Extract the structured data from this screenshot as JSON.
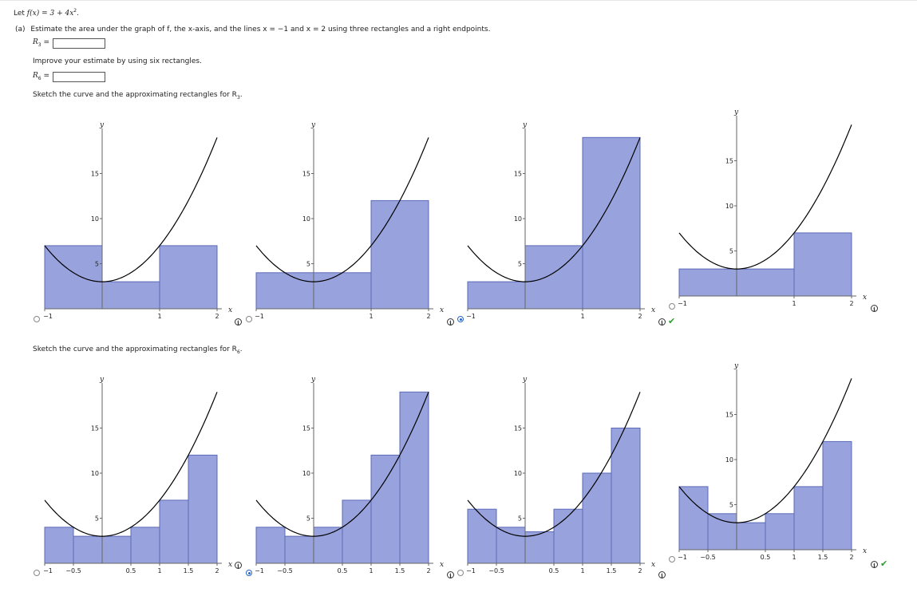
{
  "problem": {
    "statement_prefix": "Let ",
    "function_text": "f(x) = 3 + 4x",
    "function_exp": "2",
    "statement_suffix": ".",
    "part_a_label": "(a)",
    "part_a_text": "Estimate the area under the graph of f, the x-axis, and the lines x = −1 and x = 2 using three rectangles and a right endpoints.",
    "r3_label": "R",
    "r3_sub": "3",
    "r3_value": "",
    "improve_text": "Improve your estimate by using six rectangles.",
    "r6_label": "R",
    "r6_sub": "6",
    "r6_value": "",
    "sketch_r3_text": "Sketch the curve and the approximating rectangles for R",
    "sketch_r3_sub": "3",
    "sketch_r6_text": "Sketch the curve and the approximating rectangles for R",
    "sketch_r6_sub": "6"
  },
  "colors": {
    "rect_fill": "#98a2dc",
    "rect_stroke": "#5d6bb8",
    "curve": "#000000",
    "check": "#2aa02a",
    "radio": "#2266cc"
  },
  "icons": {
    "info": "info-icon",
    "check": "checkmark-icon"
  },
  "chart_data": [
    {
      "type": "bar",
      "group": "R3",
      "option": 1,
      "selected": false,
      "correct": false,
      "x_ticks": [
        "−1",
        "1",
        "2"
      ],
      "y_ticks": [
        "5",
        "10",
        "15"
      ],
      "xlabel": "x",
      "ylabel": "y",
      "xlim": [
        -1,
        2
      ],
      "ylim": [
        0,
        19
      ],
      "bars": [
        {
          "x0": -1,
          "x1": 0,
          "h": 7
        },
        {
          "x0": 0,
          "x1": 1,
          "h": 3
        },
        {
          "x0": 1,
          "x1": 2,
          "h": 7
        }
      ]
    },
    {
      "type": "bar",
      "group": "R3",
      "option": 2,
      "selected": false,
      "correct": false,
      "x_ticks": [
        "−1",
        "1",
        "2"
      ],
      "y_ticks": [
        "5",
        "10",
        "15"
      ],
      "xlabel": "x",
      "ylabel": "y",
      "xlim": [
        -1,
        2
      ],
      "ylim": [
        0,
        19
      ],
      "bars": [
        {
          "x0": -1,
          "x1": 1,
          "h": 4
        },
        {
          "x0": 1,
          "x1": 2,
          "h": 12
        }
      ]
    },
    {
      "type": "bar",
      "group": "R3",
      "option": 3,
      "selected": true,
      "correct": true,
      "x_ticks": [
        "−1",
        "1",
        "2"
      ],
      "y_ticks": [
        "5",
        "10",
        "15"
      ],
      "xlabel": "x",
      "ylabel": "y",
      "xlim": [
        -1,
        2
      ],
      "ylim": [
        0,
        19
      ],
      "bars": [
        {
          "x0": -1,
          "x1": 0,
          "h": 3
        },
        {
          "x0": 0,
          "x1": 1,
          "h": 7
        },
        {
          "x0": 1,
          "x1": 2,
          "h": 19
        }
      ]
    },
    {
      "type": "bar",
      "group": "R3",
      "option": 4,
      "selected": false,
      "correct": false,
      "x_ticks": [
        "−1",
        "1",
        "2"
      ],
      "y_ticks": [
        "5",
        "10",
        "15"
      ],
      "xlabel": "x",
      "ylabel": "y",
      "xlim": [
        -1,
        2
      ],
      "ylim": [
        0,
        19
      ],
      "bars": [
        {
          "x0": -1,
          "x1": 1,
          "h": 3
        },
        {
          "x0": 1,
          "x1": 2,
          "h": 7
        }
      ]
    },
    {
      "type": "bar",
      "group": "R6",
      "option": 1,
      "selected": false,
      "correct": false,
      "x_ticks": [
        "−1",
        "−0.5",
        "0.5",
        "1",
        "1.5",
        "2"
      ],
      "y_ticks": [
        "5",
        "10",
        "15"
      ],
      "xlabel": "x",
      "ylabel": "y",
      "xlim": [
        -1,
        2
      ],
      "ylim": [
        0,
        19
      ],
      "bars": [
        {
          "x0": -1,
          "x1": -0.5,
          "h": 4
        },
        {
          "x0": -0.5,
          "x1": 0,
          "h": 3
        },
        {
          "x0": 0,
          "x1": 0.5,
          "h": 3
        },
        {
          "x0": 0.5,
          "x1": 1,
          "h": 4
        },
        {
          "x0": 1,
          "x1": 1.5,
          "h": 7
        },
        {
          "x0": 1.5,
          "x1": 2,
          "h": 12
        }
      ]
    },
    {
      "type": "bar",
      "group": "R6",
      "option": 2,
      "selected": true,
      "correct": false,
      "x_ticks": [
        "−1",
        "−0.5",
        "0.5",
        "1",
        "1.5",
        "2"
      ],
      "y_ticks": [
        "5",
        "10",
        "15"
      ],
      "xlabel": "x",
      "ylabel": "y",
      "xlim": [
        -1,
        2
      ],
      "ylim": [
        0,
        19
      ],
      "bars": [
        {
          "x0": -1,
          "x1": -0.5,
          "h": 4
        },
        {
          "x0": -0.5,
          "x1": 0,
          "h": 3
        },
        {
          "x0": 0,
          "x1": 0.5,
          "h": 4
        },
        {
          "x0": 0.5,
          "x1": 1,
          "h": 7
        },
        {
          "x0": 1,
          "x1": 1.5,
          "h": 12
        },
        {
          "x0": 1.5,
          "x1": 2,
          "h": 19
        }
      ]
    },
    {
      "type": "bar",
      "group": "R6",
      "option": 3,
      "selected": false,
      "correct": false,
      "x_ticks": [
        "−1",
        "−0.5",
        "0.5",
        "1",
        "1.5",
        "2"
      ],
      "y_ticks": [
        "5",
        "10",
        "15"
      ],
      "xlabel": "x",
      "ylabel": "y",
      "xlim": [
        -1,
        2
      ],
      "ylim": [
        0,
        19
      ],
      "bars": [
        {
          "x0": -1,
          "x1": -0.5,
          "h": 6
        },
        {
          "x0": -0.5,
          "x1": 0,
          "h": 4
        },
        {
          "x0": 0,
          "x1": 0.5,
          "h": 3.5
        },
        {
          "x0": 0.5,
          "x1": 1,
          "h": 6
        },
        {
          "x0": 1,
          "x1": 1.5,
          "h": 10
        },
        {
          "x0": 1.5,
          "x1": 2,
          "h": 15
        }
      ]
    },
    {
      "type": "bar",
      "group": "R6",
      "option": 4,
      "selected": false,
      "correct": true,
      "x_ticks": [
        "−1",
        "−0.5",
        "0.5",
        "1",
        "1.5",
        "2"
      ],
      "y_ticks": [
        "5",
        "10",
        "15"
      ],
      "xlabel": "x",
      "ylabel": "y",
      "xlim": [
        -1,
        2
      ],
      "ylim": [
        0,
        19
      ],
      "bars": [
        {
          "x0": -1,
          "x1": -0.5,
          "h": 7
        },
        {
          "x0": -0.5,
          "x1": 0,
          "h": 4
        },
        {
          "x0": 0,
          "x1": 0.5,
          "h": 3
        },
        {
          "x0": 0.5,
          "x1": 1,
          "h": 4
        },
        {
          "x0": 1,
          "x1": 1.5,
          "h": 7
        },
        {
          "x0": 1.5,
          "x1": 2,
          "h": 12
        }
      ]
    }
  ]
}
